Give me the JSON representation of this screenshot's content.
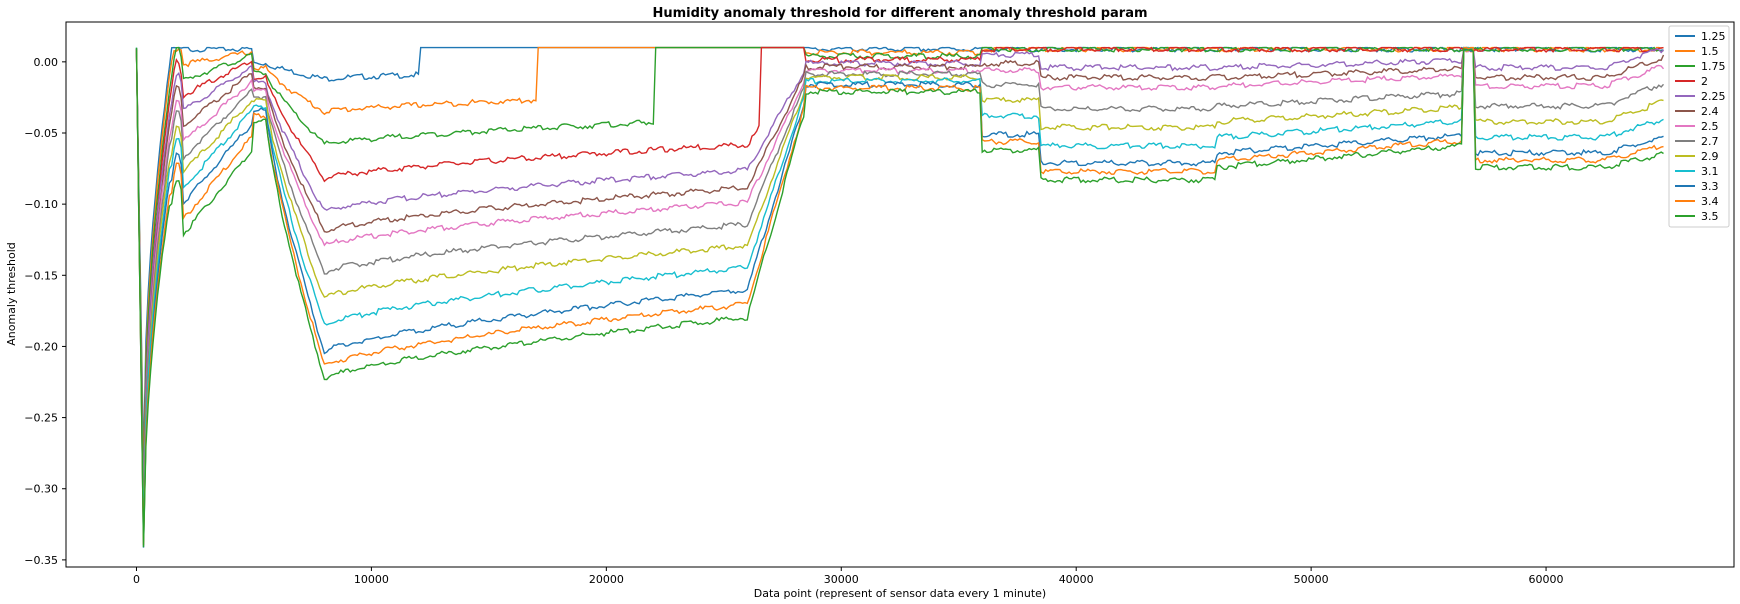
{
  "chart_data": {
    "type": "line",
    "title": "Humidity anomaly threshold for different anomaly threshold param",
    "xlabel": "Data point (represent of sensor data every 1 minute)",
    "ylabel": "Anomaly threshold",
    "xlim": [
      -3000,
      68000
    ],
    "ylim": [
      -0.355,
      0.028
    ],
    "xticks": [
      0,
      10000,
      20000,
      30000,
      40000,
      50000,
      60000
    ],
    "xtick_labels": [
      "0",
      "10000",
      "20000",
      "30000",
      "40000",
      "50000",
      "60000"
    ],
    "yticks": [
      0.0,
      -0.05,
      -0.1,
      -0.15,
      -0.2,
      -0.25,
      -0.3,
      -0.35
    ],
    "ytick_labels": [
      "0.00",
      "−0.05",
      "−0.10",
      "−0.15",
      "−0.20",
      "−0.25",
      "−0.30",
      "−0.35"
    ],
    "grid": false,
    "legend_position": "top-right",
    "cap": 0.01,
    "series": [
      {
        "name": "1.25",
        "color": "#1f77b4",
        "min": -0.28,
        "mid_min": -0.011,
        "x_recover": 12000,
        "late": [
          0.01,
          0.01,
          0.01,
          0.01
        ]
      },
      {
        "name": "1.5",
        "color": "#ff7f0e",
        "min": -0.29,
        "mid_min": -0.034,
        "x_recover": 17000,
        "late": [
          0.01,
          0.01,
          0.01,
          0.01
        ]
      },
      {
        "name": "1.75",
        "color": "#2ca02c",
        "min": -0.3,
        "mid_min": -0.057,
        "x_recover": 22000,
        "late": [
          0.01,
          0.01,
          0.01,
          0.01
        ]
      },
      {
        "name": "2",
        "color": "#d62728",
        "min": -0.31,
        "mid_min": -0.081,
        "x_recover": 26500,
        "late": [
          0.01,
          0.01,
          0.01,
          0.01
        ]
      },
      {
        "name": "2.25",
        "color": "#9467bd",
        "min": -0.31,
        "mid_min": -0.104,
        "x_recover": 26800,
        "late": [
          0.006,
          -0.003,
          -0.003,
          0.01
        ]
      },
      {
        "name": "2.4",
        "color": "#8c564b",
        "min": -0.32,
        "mid_min": -0.118,
        "x_recover": 27000,
        "late": [
          -0.0,
          -0.01,
          -0.01,
          0.004
        ]
      },
      {
        "name": "2.5",
        "color": "#e377c2",
        "min": -0.32,
        "mid_min": -0.128,
        "x_recover": 27200,
        "late": [
          -0.005,
          -0.017,
          -0.016,
          -0.002
        ]
      },
      {
        "name": "2.7",
        "color": "#7f7f7f",
        "min": -0.32,
        "mid_min": -0.147,
        "x_recover": 27500,
        "late": [
          -0.015,
          -0.032,
          -0.03,
          -0.014
        ]
      },
      {
        "name": "2.9",
        "color": "#bcbd22",
        "min": -0.33,
        "mid_min": -0.165,
        "x_recover": 27800,
        "late": [
          -0.026,
          -0.045,
          -0.041,
          -0.027
        ]
      },
      {
        "name": "3.1",
        "color": "#17becf",
        "min": -0.33,
        "mid_min": -0.184,
        "x_recover": 28000,
        "late": [
          -0.037,
          -0.058,
          -0.052,
          -0.039
        ]
      },
      {
        "name": "3.3",
        "color": "#1f77b4",
        "min": -0.34,
        "mid_min": -0.203,
        "x_recover": 28300,
        "late": [
          -0.05,
          -0.07,
          -0.063,
          -0.052
        ]
      },
      {
        "name": "3.4",
        "color": "#ff7f0e",
        "min": -0.34,
        "mid_min": -0.213,
        "x_recover": 28500,
        "late": [
          -0.055,
          -0.076,
          -0.068,
          -0.058
        ]
      },
      {
        "name": "3.5",
        "color": "#2ca02c",
        "min": -0.34,
        "mid_min": -0.222,
        "x_recover": 28700,
        "late": [
          -0.061,
          -0.082,
          -0.073,
          -0.064
        ]
      }
    ]
  }
}
